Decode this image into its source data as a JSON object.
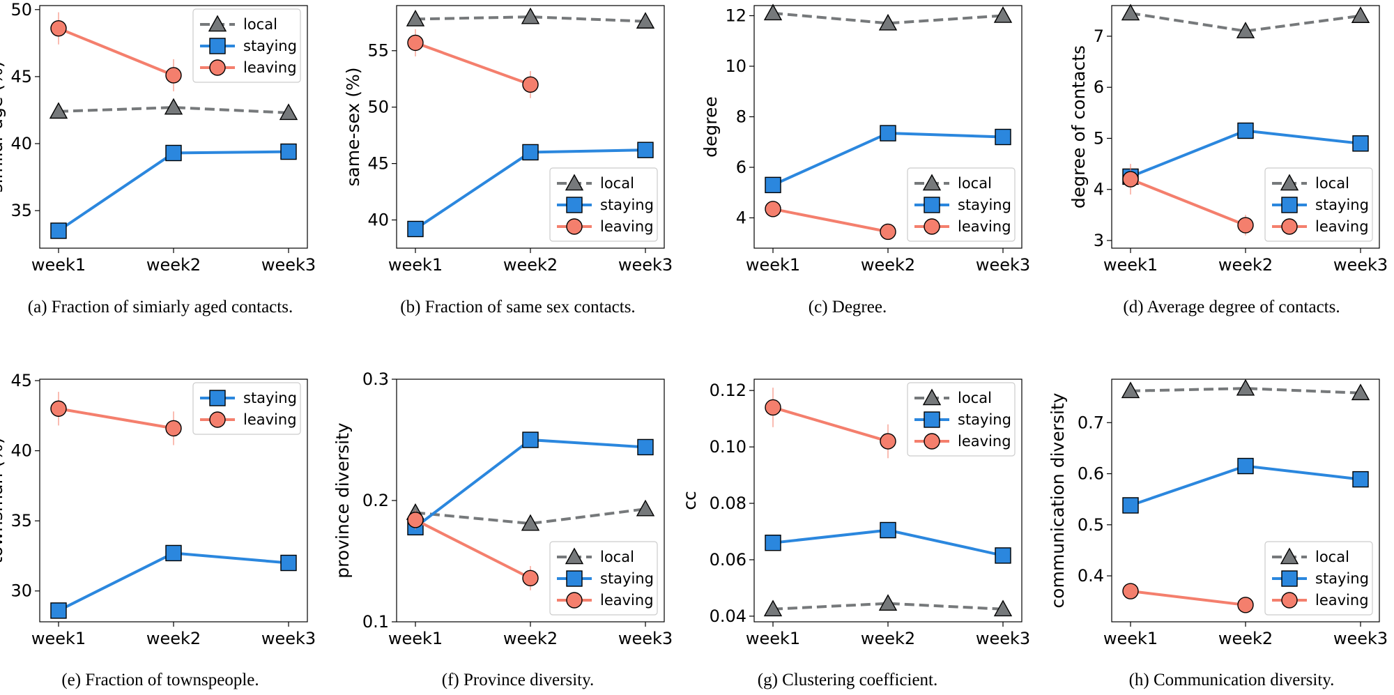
{
  "x_categories": [
    "week1",
    "week2",
    "week3"
  ],
  "legend_labels": {
    "local": "local",
    "staying": "staying",
    "leaving": "leaving"
  },
  "styles": {
    "local": {
      "color": "#76797b",
      "marker": "triangle",
      "dash": true
    },
    "staying": {
      "color": "#2b87de",
      "marker": "square",
      "dash": false
    },
    "leaving": {
      "color": "#f47f6d",
      "marker": "circle",
      "dash": false
    }
  },
  "chart_data": [
    {
      "type": "line",
      "title": "",
      "caption": "(a)  Fraction of simiarly aged contacts.",
      "xlabel": "",
      "ylabel": "similar-age (%)",
      "ylim": [
        32.2,
        50.3
      ],
      "yticks": [
        35,
        40,
        45,
        50
      ],
      "ytick_labels": [
        "35",
        "40",
        "45",
        "50"
      ],
      "legend_position": "top-right",
      "legend_order": [
        "local",
        "staying",
        "leaving"
      ],
      "series": [
        {
          "key": "local",
          "name": "local",
          "values": [
            42.4,
            42.7,
            42.3
          ]
        },
        {
          "key": "staying",
          "name": "staying",
          "values": [
            33.5,
            39.3,
            39.4
          ]
        },
        {
          "key": "leaving",
          "name": "leaving",
          "values": [
            48.6,
            45.1
          ],
          "error": [
            1.2,
            1.2
          ]
        }
      ]
    },
    {
      "type": "line",
      "title": "",
      "caption": "(b)  Fraction of same sex contacts.",
      "xlabel": "",
      "ylabel": "same-sex (%)",
      "ylim": [
        37.5,
        59
      ],
      "yticks": [
        40,
        45,
        50,
        55
      ],
      "ytick_labels": [
        "40",
        "45",
        "50",
        "55"
      ],
      "legend_position": "lower-right",
      "legend_order": [
        "local",
        "staying",
        "leaving"
      ],
      "series": [
        {
          "key": "local",
          "name": "local",
          "values": [
            57.8,
            58.0,
            57.6
          ]
        },
        {
          "key": "staying",
          "name": "staying",
          "values": [
            39.2,
            46.0,
            46.2
          ]
        },
        {
          "key": "leaving",
          "name": "leaving",
          "values": [
            55.7,
            52.0
          ],
          "error": [
            1.2,
            1.2
          ]
        }
      ]
    },
    {
      "type": "line",
      "title": "",
      "caption": "(c)  Degree.",
      "xlabel": "",
      "ylabel": "degree",
      "ylim": [
        2.8,
        12.4
      ],
      "yticks": [
        4,
        6,
        8,
        10,
        12
      ],
      "ytick_labels": [
        "4",
        "6",
        "8",
        "10",
        "12"
      ],
      "legend_position": "lower-right",
      "legend_order": [
        "local",
        "staying",
        "leaving"
      ],
      "series": [
        {
          "key": "local",
          "name": "local",
          "values": [
            12.1,
            11.7,
            12.0
          ]
        },
        {
          "key": "staying",
          "name": "staying",
          "values": [
            5.3,
            7.35,
            7.2
          ]
        },
        {
          "key": "leaving",
          "name": "leaving",
          "values": [
            4.35,
            3.45
          ],
          "error": [
            0.1,
            0.1
          ]
        }
      ]
    },
    {
      "type": "line",
      "title": "",
      "caption": "(d)  Average degree of contacts.",
      "xlabel": "",
      "ylabel": "degree of contacts",
      "ylim": [
        2.85,
        7.6
      ],
      "yticks": [
        3,
        4,
        5,
        6,
        7
      ],
      "ytick_labels": [
        "3",
        "4",
        "5",
        "6",
        "7"
      ],
      "legend_position": "lower-right",
      "legend_order": [
        "local",
        "staying",
        "leaving"
      ],
      "series": [
        {
          "key": "local",
          "name": "local",
          "values": [
            7.45,
            7.1,
            7.4
          ]
        },
        {
          "key": "staying",
          "name": "staying",
          "values": [
            4.25,
            5.15,
            4.9
          ]
        },
        {
          "key": "leaving",
          "name": "leaving",
          "values": [
            4.2,
            3.3
          ],
          "error": [
            0.3,
            0.2
          ]
        }
      ]
    },
    {
      "type": "line",
      "title": "",
      "caption": "(e)  Fraction of townspeople.",
      "xlabel": "",
      "ylabel": "townsman (%)",
      "ylim": [
        27.8,
        45.1
      ],
      "yticks": [
        30,
        35,
        40,
        45
      ],
      "ytick_labels": [
        "30",
        "35",
        "40",
        "45"
      ],
      "legend_position": "top-right",
      "legend_order": [
        "staying",
        "leaving"
      ],
      "series": [
        {
          "key": "staying",
          "name": "staying",
          "values": [
            28.6,
            32.7,
            32.0
          ]
        },
        {
          "key": "leaving",
          "name": "leaving",
          "values": [
            43.0,
            41.6
          ],
          "error": [
            1.2,
            1.2
          ]
        }
      ]
    },
    {
      "type": "line",
      "title": "",
      "caption": "(f)  Province diversity.",
      "xlabel": "",
      "ylabel": "province diversity",
      "ylim": [
        0.1,
        0.3
      ],
      "yticks": [
        0.1,
        0.2,
        0.3
      ],
      "ytick_labels": [
        "0.1",
        "0.2",
        "0.3"
      ],
      "legend_position": "lower-right",
      "legend_order": [
        "local",
        "staying",
        "leaving"
      ],
      "series": [
        {
          "key": "local",
          "name": "local",
          "values": [
            0.19,
            0.181,
            0.193
          ]
        },
        {
          "key": "staying",
          "name": "staying",
          "values": [
            0.178,
            0.25,
            0.244
          ]
        },
        {
          "key": "leaving",
          "name": "leaving",
          "values": [
            0.184,
            0.136
          ],
          "error": [
            0.008,
            0.01
          ]
        }
      ]
    },
    {
      "type": "line",
      "title": "",
      "caption": "(g)  Clustering coefficient.",
      "xlabel": "",
      "ylabel": "cc",
      "ylim": [
        0.038,
        0.124
      ],
      "yticks": [
        0.04,
        0.06,
        0.08,
        0.1,
        0.12
      ],
      "ytick_labels": [
        "0.04",
        "0.06",
        "0.08",
        "0.10",
        "0.12"
      ],
      "legend_position": "top-right",
      "legend_order": [
        "local",
        "staying",
        "leaving"
      ],
      "series": [
        {
          "key": "local",
          "name": "local",
          "values": [
            0.0425,
            0.0445,
            0.0425
          ]
        },
        {
          "key": "staying",
          "name": "staying",
          "values": [
            0.066,
            0.0705,
            0.0615
          ]
        },
        {
          "key": "leaving",
          "name": "leaving",
          "values": [
            0.114,
            0.102
          ],
          "error": [
            0.007,
            0.006
          ]
        }
      ]
    },
    {
      "type": "line",
      "title": "",
      "caption": "(h)  Communication diversity.",
      "xlabel": "",
      "ylabel": "communication diversity",
      "ylim": [
        0.31,
        0.785
      ],
      "yticks": [
        0.4,
        0.5,
        0.6,
        0.7
      ],
      "ytick_labels": [
        "0.4",
        "0.5",
        "0.6",
        "0.7"
      ],
      "legend_position": "lower-right",
      "legend_order": [
        "local",
        "staying",
        "leaving"
      ],
      "series": [
        {
          "key": "local",
          "name": "local",
          "values": [
            0.762,
            0.767,
            0.758
          ]
        },
        {
          "key": "staying",
          "name": "staying",
          "values": [
            0.538,
            0.615,
            0.589
          ]
        },
        {
          "key": "leaving",
          "name": "leaving",
          "values": [
            0.37,
            0.343
          ]
        }
      ]
    }
  ]
}
